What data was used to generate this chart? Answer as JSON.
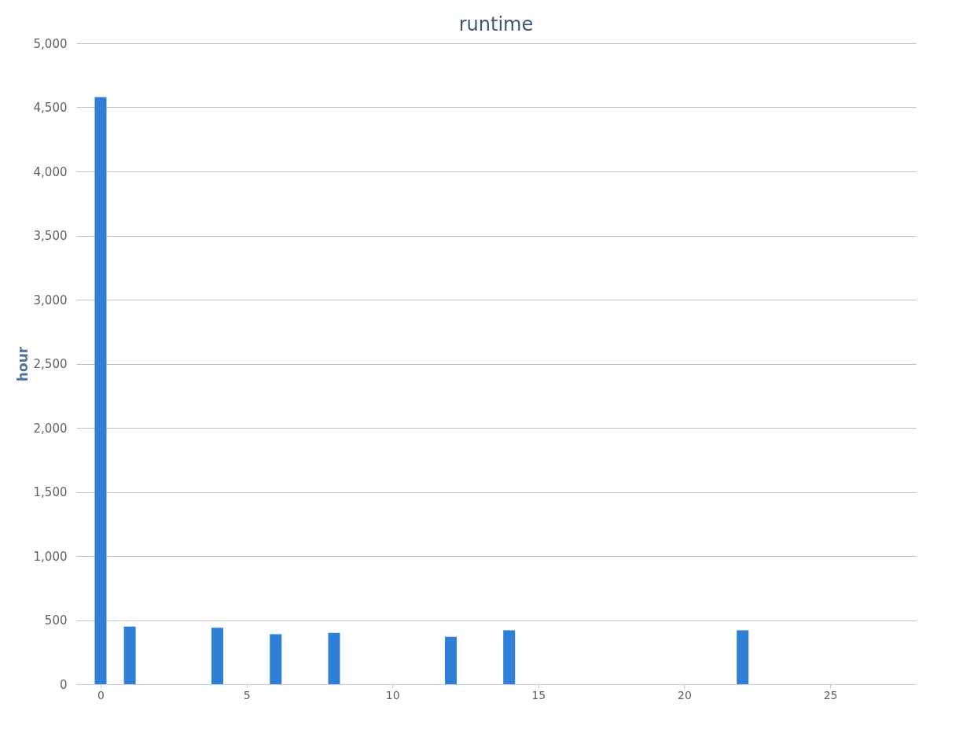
{
  "chart_data": {
    "type": "bar",
    "title": "runtime",
    "ylabel": "hour",
    "x": [
      0,
      1,
      4,
      6,
      8,
      12,
      14,
      22
    ],
    "values": [
      4580,
      450,
      440,
      390,
      400,
      370,
      420,
      420
    ],
    "color": "#2f7ed8",
    "xlim": [
      -0.7,
      27.8
    ],
    "xticks": [
      0,
      5,
      10,
      15,
      20,
      25
    ],
    "ylim": [
      0,
      5000
    ],
    "yticks": [
      0,
      500,
      {
        "value": 1000,
        "label": "1,000"
      },
      {
        "value": 1500,
        "label": "1,500"
      },
      {
        "value": 2000,
        "label": "2,000"
      },
      {
        "value": 2500,
        "label": "2,500"
      },
      {
        "value": 3000,
        "label": "3,000"
      },
      {
        "value": 3500,
        "label": "3,500"
      },
      {
        "value": 4000,
        "label": "4,000"
      },
      {
        "value": 4500,
        "label": "4,500"
      },
      {
        "value": 5000,
        "label": "5,000"
      }
    ],
    "grid": "y"
  }
}
